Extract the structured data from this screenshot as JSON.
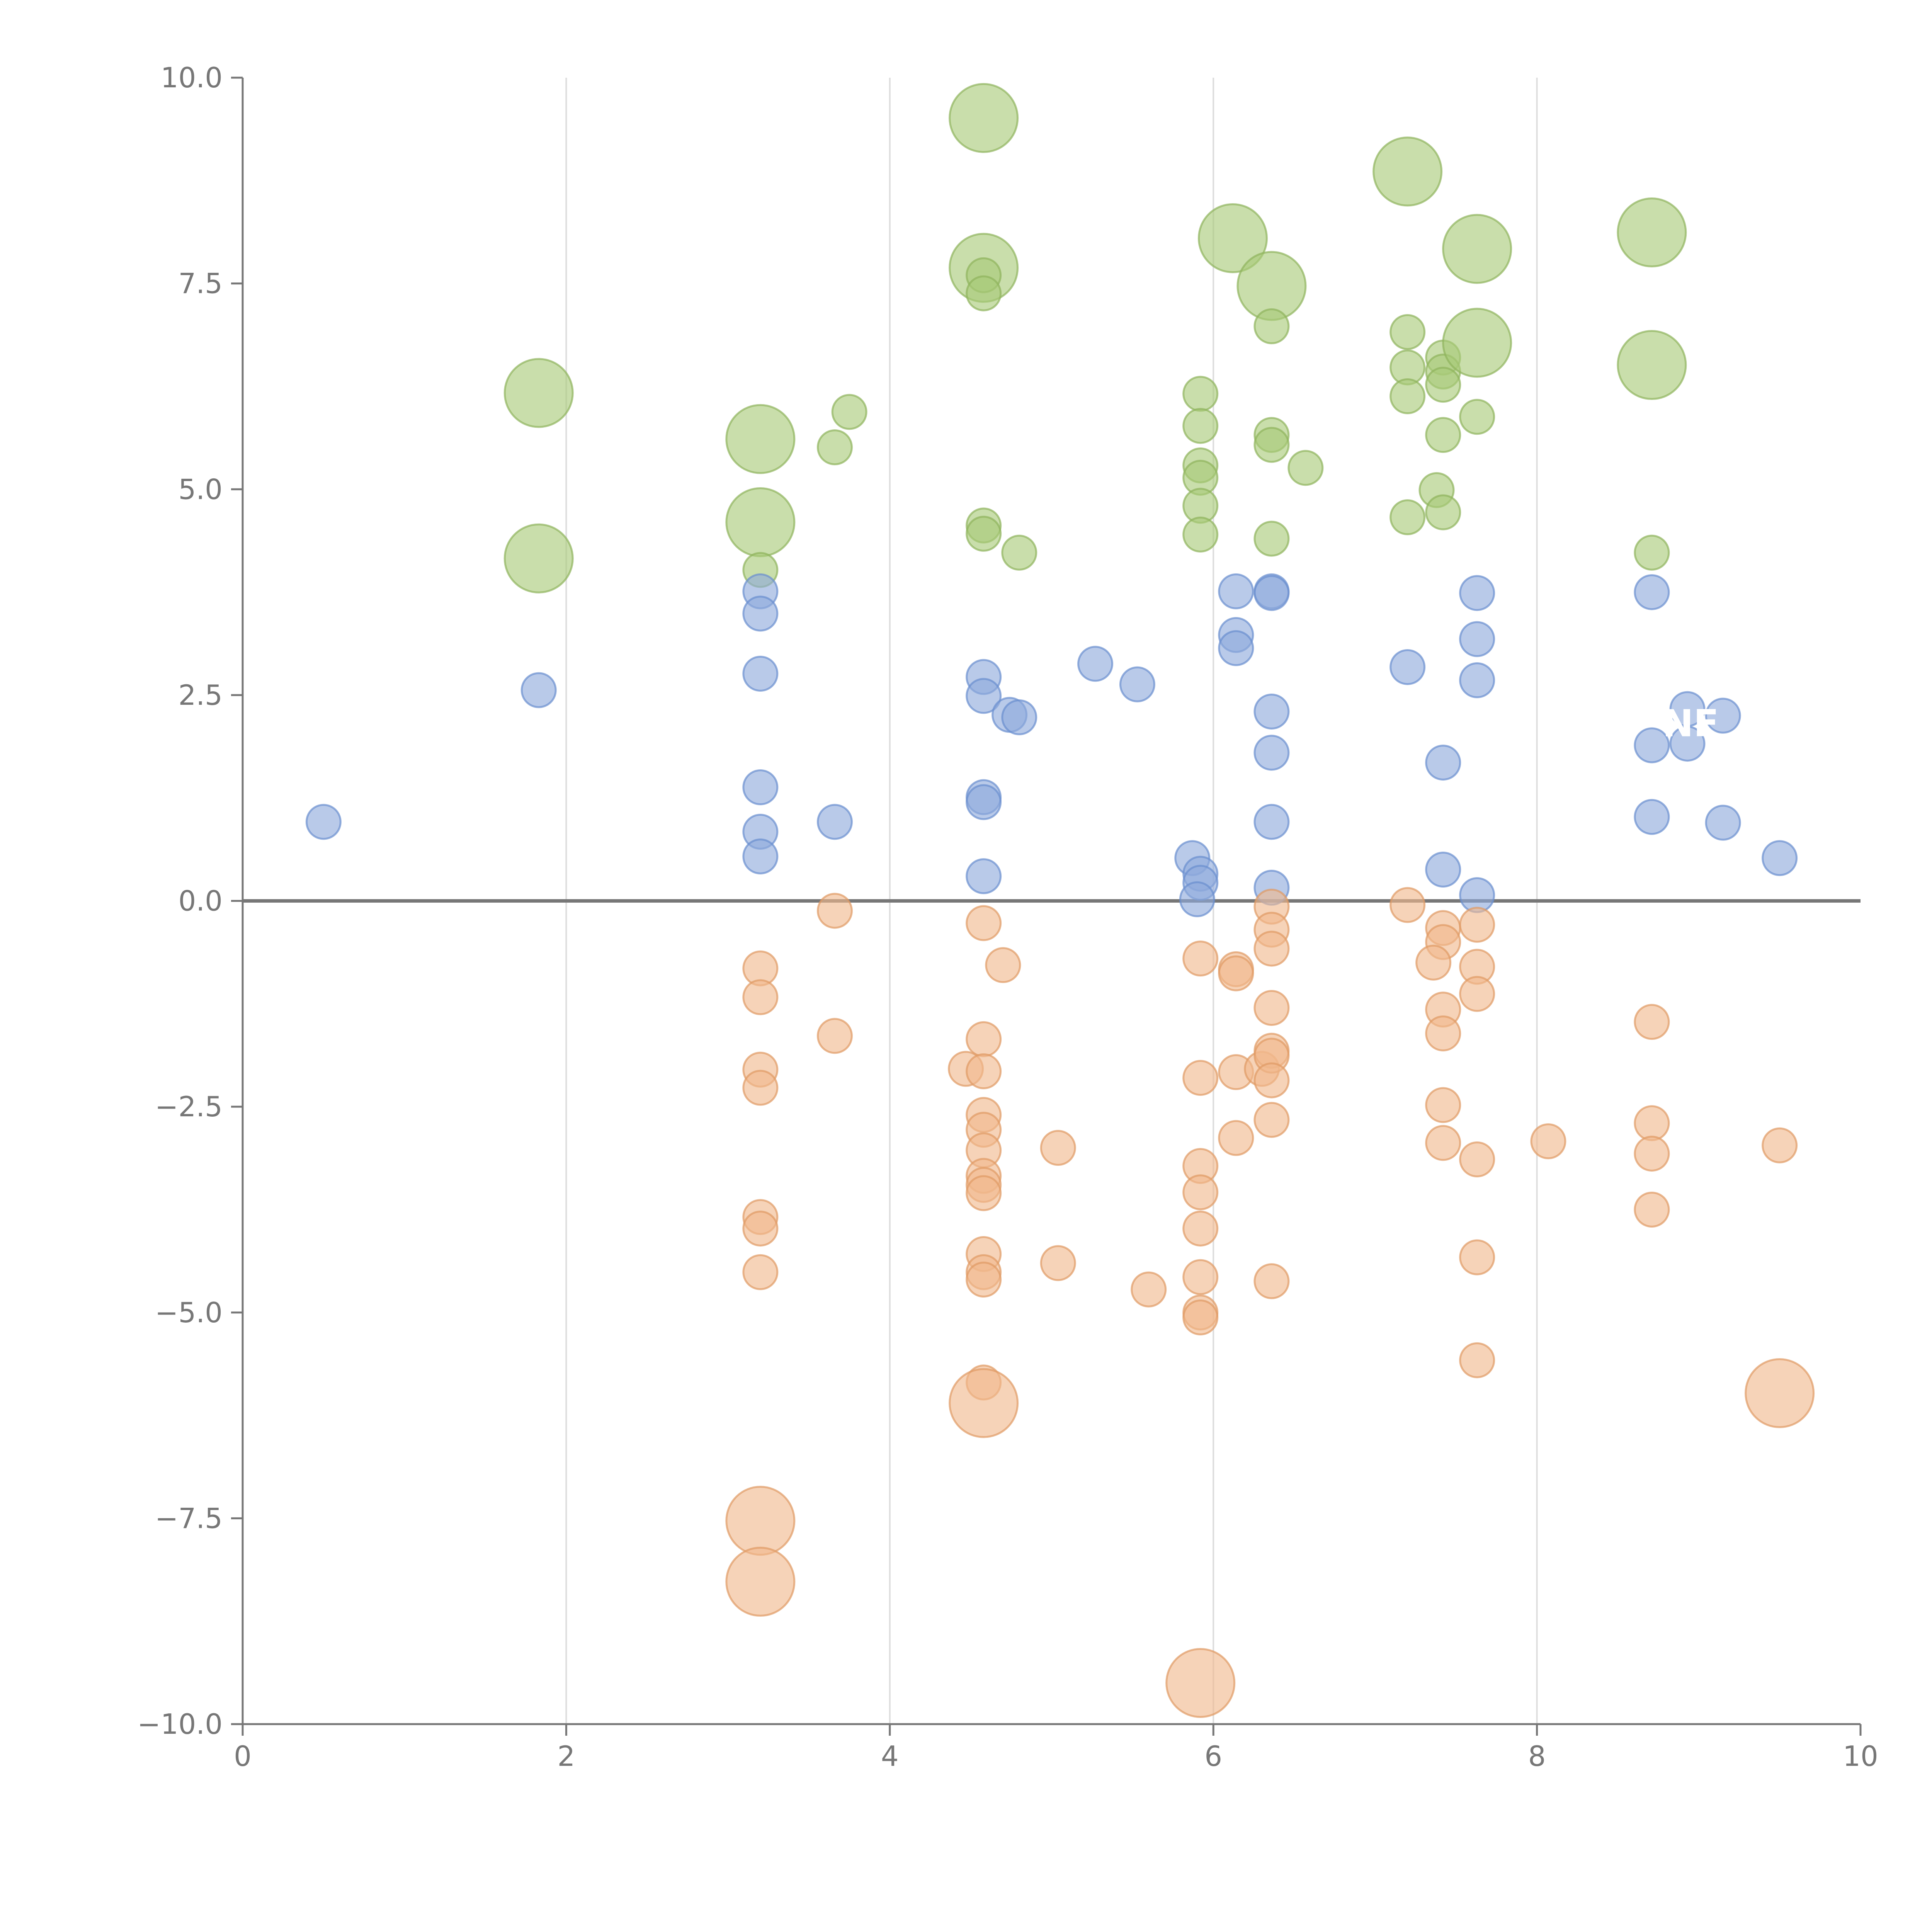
{
  "chart_data": {
    "type": "scatter",
    "title": "",
    "xlabel": "",
    "ylabel": "",
    "xlim": [
      0,
      10
    ],
    "ylim": [
      -10,
      10
    ],
    "x_ticks": [
      "0",
      "2",
      "4",
      "6",
      "8",
      "10"
    ],
    "y_ticks": [
      "10.0",
      "7.5",
      "5.0",
      "2.5",
      "0.0",
      "−2.5",
      "−5.0",
      "−7.5",
      "−10.0"
    ],
    "vertical_gridlines_at": [
      2,
      4,
      6,
      8
    ],
    "zero_line": 0,
    "annotation": {
      "text": "NF",
      "x": 8.95,
      "y": 2.0
    },
    "series": [
      {
        "name": "green",
        "color": "#a8c978",
        "stroke": "#8fb35c",
        "points": [
          {
            "x": 1.83,
            "y": 6.17,
            "s": "L"
          },
          {
            "x": 1.83,
            "y": 4.16,
            "s": "L"
          },
          {
            "x": 3.2,
            "y": 5.61,
            "s": "L"
          },
          {
            "x": 3.2,
            "y": 4.6,
            "s": "L"
          },
          {
            "x": 3.2,
            "y": 4.02,
            "s": "S"
          },
          {
            "x": 3.66,
            "y": 5.51,
            "s": "S"
          },
          {
            "x": 3.75,
            "y": 5.94,
            "s": "S"
          },
          {
            "x": 4.58,
            "y": 9.51,
            "s": "L"
          },
          {
            "x": 4.58,
            "y": 7.69,
            "s": "L"
          },
          {
            "x": 4.58,
            "y": 7.6,
            "s": "S"
          },
          {
            "x": 4.58,
            "y": 7.38,
            "s": "S"
          },
          {
            "x": 4.58,
            "y": 4.56,
            "s": "S"
          },
          {
            "x": 4.58,
            "y": 4.46,
            "s": "S"
          },
          {
            "x": 4.8,
            "y": 4.23,
            "s": "S"
          },
          {
            "x": 5.92,
            "y": 6.16,
            "s": "S"
          },
          {
            "x": 5.92,
            "y": 5.77,
            "s": "S"
          },
          {
            "x": 5.92,
            "y": 5.29,
            "s": "S"
          },
          {
            "x": 5.92,
            "y": 5.14,
            "s": "S"
          },
          {
            "x": 5.92,
            "y": 4.8,
            "s": "S"
          },
          {
            "x": 5.92,
            "y": 4.45,
            "s": "S"
          },
          {
            "x": 6.12,
            "y": 8.05,
            "s": "L"
          },
          {
            "x": 6.36,
            "y": 7.47,
            "s": "L"
          },
          {
            "x": 6.36,
            "y": 6.98,
            "s": "S"
          },
          {
            "x": 6.36,
            "y": 5.66,
            "s": "S"
          },
          {
            "x": 6.36,
            "y": 5.54,
            "s": "S"
          },
          {
            "x": 6.36,
            "y": 4.4,
            "s": "S"
          },
          {
            "x": 6.57,
            "y": 5.26,
            "s": "S"
          },
          {
            "x": 7.2,
            "y": 8.86,
            "s": "L"
          },
          {
            "x": 7.2,
            "y": 6.91,
            "s": "S"
          },
          {
            "x": 7.2,
            "y": 6.48,
            "s": "S"
          },
          {
            "x": 7.2,
            "y": 6.13,
            "s": "S"
          },
          {
            "x": 7.2,
            "y": 4.66,
            "s": "S"
          },
          {
            "x": 7.42,
            "y": 6.6,
            "s": "S"
          },
          {
            "x": 7.42,
            "y": 6.43,
            "s": "S"
          },
          {
            "x": 7.42,
            "y": 6.27,
            "s": "S"
          },
          {
            "x": 7.42,
            "y": 5.66,
            "s": "S"
          },
          {
            "x": 7.38,
            "y": 4.99,
            "s": "S"
          },
          {
            "x": 7.42,
            "y": 4.72,
            "s": "S"
          },
          {
            "x": 7.63,
            "y": 7.92,
            "s": "L"
          },
          {
            "x": 7.63,
            "y": 6.78,
            "s": "L"
          },
          {
            "x": 7.63,
            "y": 5.88,
            "s": "S"
          },
          {
            "x": 8.71,
            "y": 8.12,
            "s": "L"
          },
          {
            "x": 8.71,
            "y": 6.51,
            "s": "L"
          },
          {
            "x": 8.71,
            "y": 4.23,
            "s": "S"
          }
        ]
      },
      {
        "name": "blue",
        "color": "#8eaadb",
        "stroke": "#6a8fcf",
        "points": [
          {
            "x": 0.5,
            "y": 0.96,
            "s": "S"
          },
          {
            "x": 1.83,
            "y": 2.56,
            "s": "S"
          },
          {
            "x": 3.2,
            "y": 3.76,
            "s": "S"
          },
          {
            "x": 3.2,
            "y": 3.49,
            "s": "S"
          },
          {
            "x": 3.2,
            "y": 2.76,
            "s": "S"
          },
          {
            "x": 3.2,
            "y": 1.38,
            "s": "S"
          },
          {
            "x": 3.2,
            "y": 0.84,
            "s": "S"
          },
          {
            "x": 3.2,
            "y": 0.54,
            "s": "S"
          },
          {
            "x": 3.66,
            "y": 0.96,
            "s": "S"
          },
          {
            "x": 4.58,
            "y": 2.72,
            "s": "S"
          },
          {
            "x": 4.58,
            "y": 2.49,
            "s": "S"
          },
          {
            "x": 4.74,
            "y": 2.26,
            "s": "S"
          },
          {
            "x": 4.8,
            "y": 2.23,
            "s": "S"
          },
          {
            "x": 4.58,
            "y": 1.26,
            "s": "S"
          },
          {
            "x": 4.58,
            "y": 1.2,
            "s": "S"
          },
          {
            "x": 4.58,
            "y": 0.3,
            "s": "S"
          },
          {
            "x": 5.27,
            "y": 2.88,
            "s": "S"
          },
          {
            "x": 5.53,
            "y": 2.63,
            "s": "S"
          },
          {
            "x": 5.87,
            "y": 0.52,
            "s": "S"
          },
          {
            "x": 5.92,
            "y": 0.33,
            "s": "S"
          },
          {
            "x": 5.92,
            "y": 0.22,
            "s": "S"
          },
          {
            "x": 5.9,
            "y": 0.02,
            "s": "S"
          },
          {
            "x": 6.14,
            "y": 3.76,
            "s": "S"
          },
          {
            "x": 6.14,
            "y": 3.23,
            "s": "S"
          },
          {
            "x": 6.14,
            "y": 3.07,
            "s": "S"
          },
          {
            "x": 6.36,
            "y": 3.76,
            "s": "S"
          },
          {
            "x": 6.36,
            "y": 3.74,
            "s": "S"
          },
          {
            "x": 6.36,
            "y": 2.3,
            "s": "S"
          },
          {
            "x": 6.36,
            "y": 1.8,
            "s": "S"
          },
          {
            "x": 6.36,
            "y": 0.96,
            "s": "S"
          },
          {
            "x": 6.36,
            "y": 0.16,
            "s": "S"
          },
          {
            "x": 7.2,
            "y": 2.84,
            "s": "S"
          },
          {
            "x": 7.42,
            "y": 1.68,
            "s": "S"
          },
          {
            "x": 7.42,
            "y": 0.38,
            "s": "S"
          },
          {
            "x": 7.63,
            "y": 3.74,
            "s": "S"
          },
          {
            "x": 7.63,
            "y": 3.18,
            "s": "S"
          },
          {
            "x": 7.63,
            "y": 2.68,
            "s": "S"
          },
          {
            "x": 7.63,
            "y": 0.07,
            "s": "S"
          },
          {
            "x": 8.71,
            "y": 3.75,
            "s": "S"
          },
          {
            "x": 8.71,
            "y": 1.89,
            "s": "S"
          },
          {
            "x": 8.71,
            "y": 1.02,
            "s": "S"
          },
          {
            "x": 8.93,
            "y": 2.33,
            "s": "S"
          },
          {
            "x": 8.93,
            "y": 1.91,
            "s": "S"
          },
          {
            "x": 9.15,
            "y": 2.25,
            "s": "S"
          },
          {
            "x": 9.15,
            "y": 0.95,
            "s": "S"
          },
          {
            "x": 9.5,
            "y": 0.52,
            "s": "S"
          }
        ]
      },
      {
        "name": "orange",
        "color": "#f0b88c",
        "stroke": "#e09a64",
        "points": [
          {
            "x": 3.2,
            "y": -0.82,
            "s": "S"
          },
          {
            "x": 3.2,
            "y": -1.17,
            "s": "S"
          },
          {
            "x": 3.2,
            "y": -2.05,
            "s": "S"
          },
          {
            "x": 3.2,
            "y": -2.27,
            "s": "S"
          },
          {
            "x": 3.2,
            "y": -3.84,
            "s": "S"
          },
          {
            "x": 3.2,
            "y": -3.98,
            "s": "S"
          },
          {
            "x": 3.2,
            "y": -4.51,
            "s": "S"
          },
          {
            "x": 3.2,
            "y": -7.53,
            "s": "L"
          },
          {
            "x": 3.2,
            "y": -8.27,
            "s": "L"
          },
          {
            "x": 3.66,
            "y": -0.12,
            "s": "S"
          },
          {
            "x": 3.66,
            "y": -1.64,
            "s": "S"
          },
          {
            "x": 4.58,
            "y": -0.27,
            "s": "S"
          },
          {
            "x": 4.7,
            "y": -0.78,
            "s": "S"
          },
          {
            "x": 4.58,
            "y": -1.68,
            "s": "S"
          },
          {
            "x": 4.47,
            "y": -2.04,
            "s": "S"
          },
          {
            "x": 4.58,
            "y": -2.07,
            "s": "S"
          },
          {
            "x": 4.58,
            "y": -2.6,
            "s": "S"
          },
          {
            "x": 4.58,
            "y": -2.78,
            "s": "S"
          },
          {
            "x": 4.58,
            "y": -3.03,
            "s": "S"
          },
          {
            "x": 4.58,
            "y": -3.34,
            "s": "S"
          },
          {
            "x": 4.58,
            "y": -3.45,
            "s": "S"
          },
          {
            "x": 4.58,
            "y": -3.55,
            "s": "S"
          },
          {
            "x": 4.58,
            "y": -4.29,
            "s": "S"
          },
          {
            "x": 4.58,
            "y": -4.51,
            "s": "S"
          },
          {
            "x": 4.58,
            "y": -4.6,
            "s": "S"
          },
          {
            "x": 4.58,
            "y": -5.85,
            "s": "S"
          },
          {
            "x": 4.58,
            "y": -6.1,
            "s": "L"
          },
          {
            "x": 5.04,
            "y": -3.0,
            "s": "S"
          },
          {
            "x": 5.04,
            "y": -4.4,
            "s": "S"
          },
          {
            "x": 5.6,
            "y": -4.72,
            "s": "S"
          },
          {
            "x": 5.92,
            "y": -0.7,
            "s": "S"
          },
          {
            "x": 5.92,
            "y": -2.15,
            "s": "S"
          },
          {
            "x": 5.92,
            "y": -3.22,
            "s": "S"
          },
          {
            "x": 5.92,
            "y": -3.54,
            "s": "S"
          },
          {
            "x": 5.92,
            "y": -3.98,
            "s": "S"
          },
          {
            "x": 5.92,
            "y": -4.57,
            "s": "S"
          },
          {
            "x": 5.92,
            "y": -5.0,
            "s": "S"
          },
          {
            "x": 5.92,
            "y": -5.06,
            "s": "S"
          },
          {
            "x": 5.92,
            "y": -9.5,
            "s": "L"
          },
          {
            "x": 6.14,
            "y": -0.83,
            "s": "S"
          },
          {
            "x": 6.14,
            "y": -0.88,
            "s": "S"
          },
          {
            "x": 6.14,
            "y": -2.08,
            "s": "S"
          },
          {
            "x": 6.14,
            "y": -2.88,
            "s": "S"
          },
          {
            "x": 6.3,
            "y": -2.04,
            "s": "S"
          },
          {
            "x": 6.36,
            "y": -0.07,
            "s": "S"
          },
          {
            "x": 6.36,
            "y": -0.35,
            "s": "S"
          },
          {
            "x": 6.36,
            "y": -0.58,
            "s": "S"
          },
          {
            "x": 6.36,
            "y": -1.3,
            "s": "S"
          },
          {
            "x": 6.36,
            "y": -1.82,
            "s": "S"
          },
          {
            "x": 6.36,
            "y": -1.88,
            "s": "S"
          },
          {
            "x": 6.36,
            "y": -2.18,
            "s": "S"
          },
          {
            "x": 6.36,
            "y": -2.66,
            "s": "S"
          },
          {
            "x": 6.36,
            "y": -4.62,
            "s": "S"
          },
          {
            "x": 7.2,
            "y": -0.05,
            "s": "S"
          },
          {
            "x": 7.42,
            "y": -0.33,
            "s": "S"
          },
          {
            "x": 7.42,
            "y": -0.5,
            "s": "S"
          },
          {
            "x": 7.36,
            "y": -0.75,
            "s": "S"
          },
          {
            "x": 7.42,
            "y": -1.32,
            "s": "S"
          },
          {
            "x": 7.42,
            "y": -1.61,
            "s": "S"
          },
          {
            "x": 7.42,
            "y": -2.48,
            "s": "S"
          },
          {
            "x": 7.42,
            "y": -2.94,
            "s": "S"
          },
          {
            "x": 7.63,
            "y": -0.29,
            "s": "S"
          },
          {
            "x": 7.63,
            "y": -0.8,
            "s": "S"
          },
          {
            "x": 7.63,
            "y": -1.13,
            "s": "S"
          },
          {
            "x": 7.63,
            "y": -3.14,
            "s": "S"
          },
          {
            "x": 7.63,
            "y": -4.33,
            "s": "S"
          },
          {
            "x": 7.63,
            "y": -5.58,
            "s": "S"
          },
          {
            "x": 8.07,
            "y": -2.92,
            "s": "S"
          },
          {
            "x": 8.71,
            "y": -1.47,
            "s": "S"
          },
          {
            "x": 8.71,
            "y": -2.7,
            "s": "S"
          },
          {
            "x": 8.71,
            "y": -3.07,
            "s": "S"
          },
          {
            "x": 8.71,
            "y": -3.75,
            "s": "S"
          },
          {
            "x": 9.5,
            "y": -2.97,
            "s": "S"
          },
          {
            "x": 9.5,
            "y": -5.98,
            "s": "L"
          }
        ]
      }
    ]
  }
}
